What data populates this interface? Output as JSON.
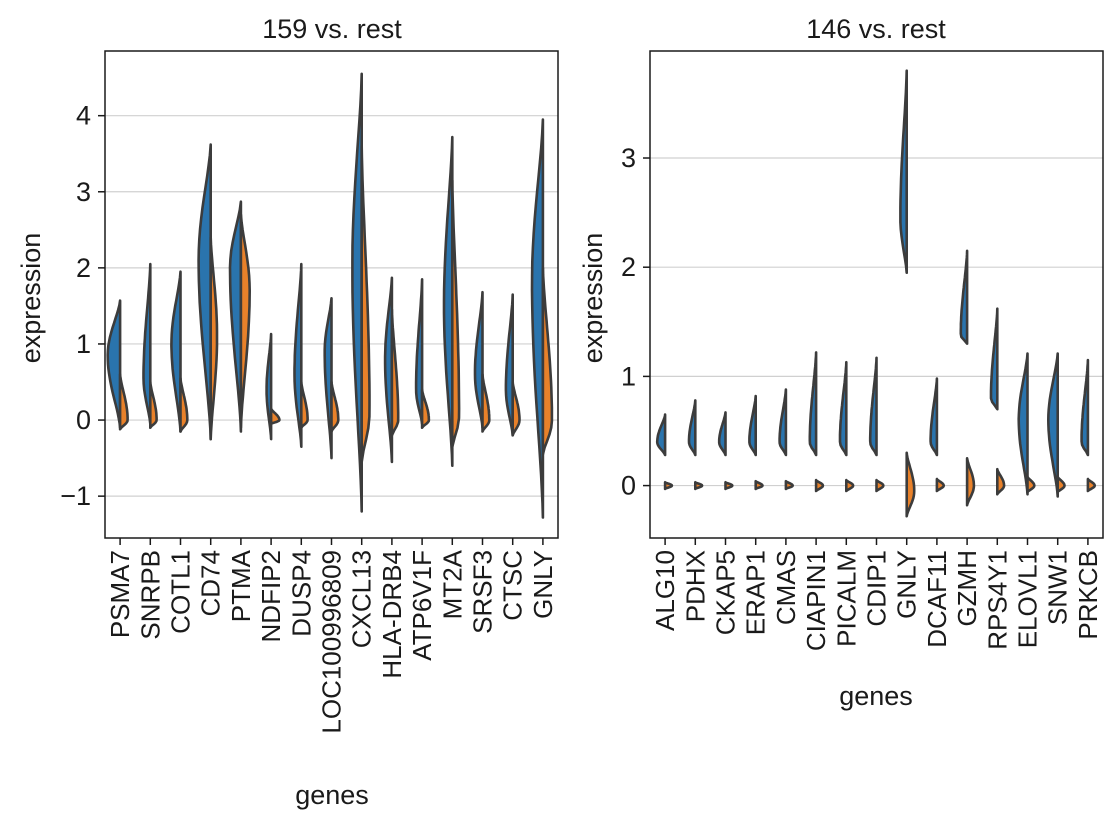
{
  "colors": {
    "group": "#2a74ad",
    "rest": "#e8812a",
    "outline": "#3c3c3c",
    "grid": "#d0d0d0",
    "spine": "#1a1a1a"
  },
  "chart_data": [
    {
      "type": "violin",
      "title": "159 vs. rest",
      "xlabel": "genes",
      "ylabel": "expression",
      "ylim": [
        -1.55,
        4.85
      ],
      "yticks": [
        -1,
        0,
        1,
        2,
        3,
        4
      ],
      "ytick_labels": [
        "−1",
        "0",
        "1",
        "2",
        "3",
        "4"
      ],
      "categories": [
        "PSMA7",
        "SNRPB",
        "COTL1",
        "CD74",
        "PTMA",
        "NDFIP2",
        "DUSP4",
        "LOC100996809",
        "CXCL13",
        "HLA-DRB4",
        "ATP6V1F",
        "MT2A",
        "SRSF3",
        "CTSC",
        "GNLY"
      ],
      "group_violins": [
        {
          "min": -0.1,
          "max": 1.57,
          "peak": 0.85,
          "width": 0.82
        },
        {
          "min": -0.05,
          "max": 2.05,
          "peak": 0.55,
          "width": 0.45
        },
        {
          "min": -0.15,
          "max": 1.95,
          "peak": 1.0,
          "width": 0.6
        },
        {
          "min": -0.25,
          "max": 3.62,
          "peak": 2.1,
          "width": 0.8
        },
        {
          "min": -0.15,
          "max": 2.87,
          "peak": 2.0,
          "width": 0.72
        },
        {
          "min": -0.25,
          "max": 1.13,
          "peak": 0.4,
          "width": 0.3
        },
        {
          "min": -0.35,
          "max": 2.05,
          "peak": 0.6,
          "width": 0.45
        },
        {
          "min": -0.5,
          "max": 1.6,
          "peak": 0.9,
          "width": 0.45
        },
        {
          "min": -1.2,
          "max": 4.55,
          "peak": 2.0,
          "width": 0.62
        },
        {
          "min": -0.55,
          "max": 1.87,
          "peak": 0.8,
          "width": 0.45
        },
        {
          "min": -0.05,
          "max": 1.85,
          "peak": 0.4,
          "width": 0.4
        },
        {
          "min": -0.6,
          "max": 3.72,
          "peak": 1.5,
          "width": 0.55
        },
        {
          "min": -0.1,
          "max": 1.68,
          "peak": 0.6,
          "width": 0.5
        },
        {
          "min": -0.2,
          "max": 1.65,
          "peak": 0.4,
          "width": 0.45
        },
        {
          "min": -1.28,
          "max": 3.95,
          "peak": 1.8,
          "width": 0.72
        }
      ],
      "rest_violins": [
        {
          "min": -0.12,
          "max": 0.6,
          "peak": 0.0,
          "width": 0.5
        },
        {
          "min": -0.1,
          "max": 0.5,
          "peak": 0.0,
          "width": 0.42
        },
        {
          "min": -0.15,
          "max": 0.55,
          "peak": 0.0,
          "width": 0.45
        },
        {
          "min": -0.25,
          "max": 2.4,
          "peak": 1.1,
          "width": 0.42
        },
        {
          "min": -0.1,
          "max": 2.7,
          "peak": 1.7,
          "width": 0.58
        },
        {
          "min": -0.05,
          "max": 0.15,
          "peak": 0.0,
          "width": 0.55
        },
        {
          "min": -0.1,
          "max": 0.5,
          "peak": 0.0,
          "width": 0.42
        },
        {
          "min": -0.15,
          "max": 0.5,
          "peak": 0.0,
          "width": 0.45
        },
        {
          "min": -0.55,
          "max": 3.6,
          "peak": 0.1,
          "width": 0.52
        },
        {
          "min": -0.2,
          "max": 1.45,
          "peak": 0.0,
          "width": 0.42
        },
        {
          "min": -0.1,
          "max": 0.4,
          "peak": 0.0,
          "width": 0.45
        },
        {
          "min": -0.35,
          "max": 3.15,
          "peak": 0.05,
          "width": 0.45
        },
        {
          "min": -0.15,
          "max": 0.6,
          "peak": 0.0,
          "width": 0.45
        },
        {
          "min": -0.2,
          "max": 0.5,
          "peak": 0.0,
          "width": 0.45
        },
        {
          "min": -0.45,
          "max": 2.0,
          "peak": 0.0,
          "width": 0.6
        }
      ]
    },
    {
      "type": "violin",
      "title": "146 vs. rest",
      "xlabel": "genes",
      "ylabel": "expression",
      "ylim": [
        -0.48,
        3.98
      ],
      "yticks": [
        0,
        1,
        2,
        3
      ],
      "ytick_labels": [
        "0",
        "1",
        "2",
        "3"
      ],
      "categories": [
        "ALG10",
        "PDHX",
        "CKAP5",
        "ERAP1",
        "CMAS",
        "CIAPIN1",
        "PICALM",
        "CDIP1",
        "GNLY",
        "DCAF11",
        "GZMH",
        "RPS4Y1",
        "ELOVL1",
        "SNW1",
        "PRKCB"
      ],
      "group_violins": [
        {
          "min": 0.28,
          "max": 0.65,
          "peak": 0.4,
          "width": 0.52
        },
        {
          "min": 0.28,
          "max": 0.78,
          "peak": 0.4,
          "width": 0.42
        },
        {
          "min": 0.28,
          "max": 0.67,
          "peak": 0.4,
          "width": 0.42
        },
        {
          "min": 0.28,
          "max": 0.82,
          "peak": 0.4,
          "width": 0.42
        },
        {
          "min": 0.28,
          "max": 0.88,
          "peak": 0.4,
          "width": 0.42
        },
        {
          "min": 0.28,
          "max": 1.22,
          "peak": 0.4,
          "width": 0.42
        },
        {
          "min": 0.28,
          "max": 1.13,
          "peak": 0.4,
          "width": 0.42
        },
        {
          "min": 0.28,
          "max": 1.17,
          "peak": 0.4,
          "width": 0.42
        },
        {
          "min": 1.95,
          "max": 3.8,
          "peak": 2.45,
          "width": 0.42
        },
        {
          "min": 0.28,
          "max": 0.98,
          "peak": 0.4,
          "width": 0.42
        },
        {
          "min": 1.3,
          "max": 2.15,
          "peak": 1.38,
          "width": 0.42
        },
        {
          "min": 0.7,
          "max": 1.62,
          "peak": 0.8,
          "width": 0.42
        },
        {
          "min": -0.08,
          "max": 1.21,
          "peak": 0.6,
          "width": 0.58
        },
        {
          "min": -0.1,
          "max": 1.21,
          "peak": 0.6,
          "width": 0.62
        },
        {
          "min": 0.28,
          "max": 1.15,
          "peak": 0.4,
          "width": 0.42
        }
      ],
      "rest_violins": [
        {
          "min": -0.03,
          "max": 0.03,
          "peak": 0.0,
          "width": 0.45
        },
        {
          "min": -0.03,
          "max": 0.03,
          "peak": 0.0,
          "width": 0.45
        },
        {
          "min": -0.03,
          "max": 0.03,
          "peak": 0.0,
          "width": 0.45
        },
        {
          "min": -0.03,
          "max": 0.04,
          "peak": 0.0,
          "width": 0.45
        },
        {
          "min": -0.03,
          "max": 0.04,
          "peak": 0.0,
          "width": 0.45
        },
        {
          "min": -0.05,
          "max": 0.05,
          "peak": 0.0,
          "width": 0.45
        },
        {
          "min": -0.05,
          "max": 0.05,
          "peak": 0.0,
          "width": 0.45
        },
        {
          "min": -0.05,
          "max": 0.05,
          "peak": 0.0,
          "width": 0.45
        },
        {
          "min": -0.28,
          "max": 0.3,
          "peak": -0.05,
          "width": 0.5
        },
        {
          "min": -0.05,
          "max": 0.06,
          "peak": 0.0,
          "width": 0.45
        },
        {
          "min": -0.18,
          "max": 0.25,
          "peak": 0.0,
          "width": 0.45
        },
        {
          "min": -0.08,
          "max": 0.15,
          "peak": 0.0,
          "width": 0.45
        },
        {
          "min": -0.06,
          "max": 0.08,
          "peak": 0.0,
          "width": 0.45
        },
        {
          "min": -0.06,
          "max": 0.08,
          "peak": 0.0,
          "width": 0.45
        },
        {
          "min": -0.05,
          "max": 0.06,
          "peak": 0.0,
          "width": 0.45
        }
      ]
    }
  ]
}
